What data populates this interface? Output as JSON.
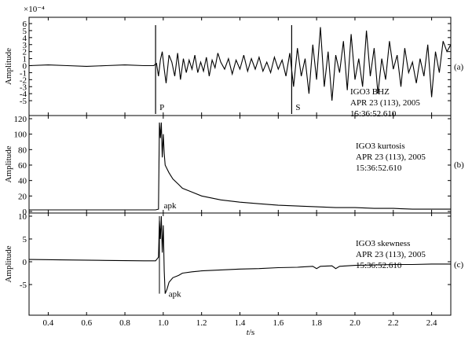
{
  "chart_data": [
    {
      "id": "a",
      "type": "line",
      "panel_label": "(a)",
      "ylabel": "Amplitude",
      "scale_label": "×10⁻⁴",
      "ylim": [
        -6,
        6
      ],
      "yticks": [
        -5,
        -4,
        -3,
        -2,
        -1,
        0,
        1,
        2,
        3,
        4,
        5,
        6
      ],
      "info": [
        "IGO3 BHZ",
        "APR 23 (113), 2005",
        "15:36:52.610"
      ],
      "markers": [
        {
          "label": "P",
          "x": 0.96
        },
        {
          "label": "S",
          "x": 1.67
        }
      ],
      "series": [
        {
          "x": [
            0.3,
            0.4,
            0.5,
            0.6,
            0.7,
            0.8,
            0.9,
            0.95,
            0.965,
            0.975,
            0.985,
            0.995,
            1.005,
            1.015,
            1.03,
            1.045,
            1.06,
            1.075,
            1.09,
            1.105,
            1.12,
            1.135,
            1.15,
            1.165,
            1.18,
            1.195,
            1.21,
            1.225,
            1.24,
            1.255,
            1.27,
            1.285,
            1.3,
            1.32,
            1.34,
            1.36,
            1.38,
            1.4,
            1.42,
            1.44,
            1.46,
            1.48,
            1.5,
            1.52,
            1.54,
            1.56,
            1.58,
            1.6,
            1.62,
            1.64,
            1.66,
            1.68,
            1.7,
            1.72,
            1.74,
            1.76,
            1.78,
            1.8,
            1.82,
            1.84,
            1.86,
            1.88,
            1.9,
            1.92,
            1.94,
            1.96,
            1.98,
            2.0,
            2.02,
            2.04,
            2.06,
            2.08,
            2.1,
            2.12,
            2.14,
            2.16,
            2.18,
            2.2,
            2.22,
            2.24,
            2.26,
            2.28,
            2.3,
            2.32,
            2.34,
            2.36,
            2.38,
            2.4,
            2.42,
            2.44,
            2.46,
            2.48,
            2.5
          ],
          "y": [
            0,
            0.1,
            0,
            -0.1,
            0,
            0.1,
            0,
            0,
            0.3,
            -1.5,
            0.8,
            2.0,
            -0.5,
            -2.5,
            1.5,
            0.5,
            -1.5,
            1.8,
            -2.0,
            1.0,
            -1.0,
            0.8,
            -0.5,
            1.5,
            -1.0,
            0.5,
            -0.8,
            1.2,
            -1.5,
            0.8,
            -0.3,
            1.8,
            0.5,
            -0.5,
            1.0,
            -1.2,
            0.8,
            -0.5,
            1.5,
            -0.8,
            1.0,
            -0.5,
            1.2,
            -0.8,
            0.5,
            -1.0,
            1.2,
            -0.5,
            0.8,
            -1.5,
            1.8,
            -3.0,
            2.5,
            -1.5,
            1.0,
            -4.0,
            3.0,
            -2.0,
            5.5,
            -3.0,
            2.0,
            -5.0,
            1.5,
            -1.0,
            3.5,
            -3.5,
            4.5,
            -2.0,
            1.0,
            -3.0,
            5.0,
            -1.5,
            2.5,
            -4.0,
            1.0,
            -2.0,
            3.5,
            -0.5,
            1.5,
            -3.0,
            2.5,
            -1.0,
            0.5,
            -2.5,
            1.0,
            -1.5,
            3.0,
            -4.5,
            2.0,
            -1.0,
            3.5,
            2.0,
            3.0
          ]
        }
      ]
    },
    {
      "id": "b",
      "type": "line",
      "panel_label": "(b)",
      "ylabel": "Amplitude",
      "ylim": [
        0,
        120
      ],
      "yticks": [
        0,
        20,
        40,
        60,
        80,
        100,
        120
      ],
      "info": [
        "IGO3 kurtosis",
        "APR 23 (113), 2005",
        "15:36:52.610"
      ],
      "annotation": {
        "text": "apk",
        "x": 0.995
      },
      "series": [
        {
          "x": [
            0.3,
            0.5,
            0.7,
            0.9,
            0.96,
            0.975,
            0.98,
            0.985,
            0.99,
            0.995,
            1.0,
            1.005,
            1.01,
            1.02,
            1.03,
            1.05,
            1.08,
            1.1,
            1.15,
            1.2,
            1.3,
            1.4,
            1.5,
            1.6,
            1.7,
            1.8,
            1.9,
            2.0,
            2.1,
            2.2,
            2.3,
            2.4,
            2.5
          ],
          "y": [
            2,
            2,
            2,
            2,
            2,
            3,
            115,
            95,
            115,
            70,
            100,
            75,
            60,
            55,
            50,
            42,
            35,
            30,
            25,
            20,
            15,
            12,
            10,
            8,
            7,
            6,
            5,
            5,
            4,
            4,
            3,
            3,
            3
          ]
        }
      ]
    },
    {
      "id": "c",
      "type": "line",
      "panel_label": "(c)",
      "ylabel": "Amplitude",
      "ylim": [
        -10,
        10
      ],
      "yticks": [
        -5,
        0,
        5,
        10
      ],
      "info": [
        "IGO3 skewness",
        "APR 23 (113), 2005",
        "15:36:52.610"
      ],
      "annotation": {
        "text": "apk",
        "x": 1.02
      },
      "series": [
        {
          "x": [
            0.3,
            0.5,
            0.7,
            0.9,
            0.96,
            0.975,
            0.98,
            0.985,
            0.99,
            0.995,
            1.0,
            1.005,
            1.01,
            1.02,
            1.03,
            1.05,
            1.08,
            1.1,
            1.15,
            1.2,
            1.3,
            1.4,
            1.5,
            1.6,
            1.7,
            1.78,
            1.8,
            1.82,
            1.88,
            1.9,
            1.92,
            2.0,
            2.1,
            2.2,
            2.3,
            2.4,
            2.5
          ],
          "y": [
            0.5,
            0.4,
            0.3,
            0.2,
            0.2,
            1,
            9,
            5,
            10,
            2,
            8,
            -2,
            -7,
            -6,
            -4.5,
            -3.5,
            -3,
            -2.5,
            -2.2,
            -2,
            -1.8,
            -1.6,
            -1.5,
            -1.3,
            -1.2,
            -1.0,
            -1.5,
            -1.0,
            -0.9,
            -1.5,
            -1.0,
            -0.8,
            -0.7,
            -0.6,
            -0.6,
            -0.5,
            -0.5
          ]
        }
      ]
    }
  ],
  "xaxis": {
    "label": "t/s",
    "xlim": [
      0.3,
      2.5
    ],
    "ticks": [
      0.4,
      0.6,
      0.8,
      1.0,
      1.2,
      1.4,
      1.6,
      1.8,
      2.0,
      2.2,
      2.4
    ],
    "tick_labels": [
      "0.4",
      "0.6",
      "0.8",
      "1.0",
      "1.2",
      "1.4",
      "1.6",
      "1.8",
      "2.0",
      "2.2",
      "2.4"
    ]
  }
}
